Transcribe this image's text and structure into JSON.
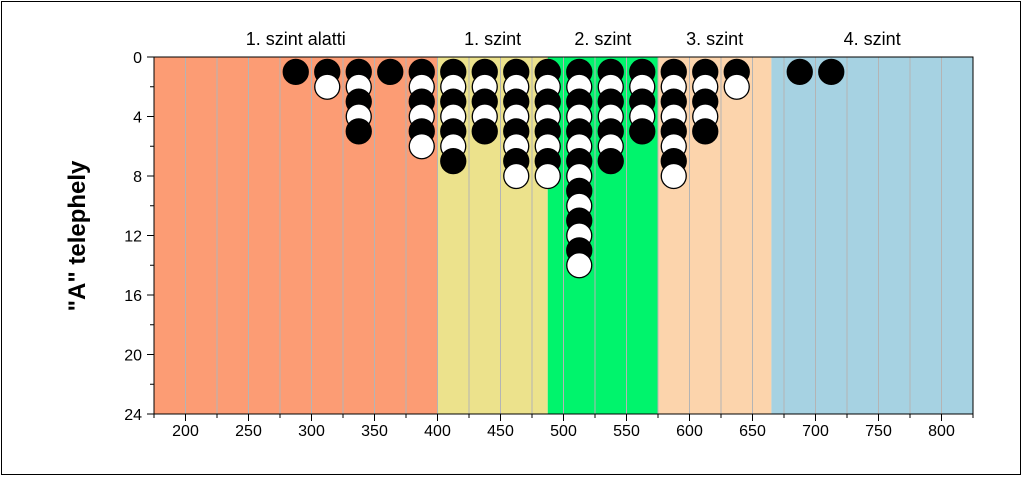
{
  "chart_data": {
    "type": "scatter",
    "title": "",
    "xlabel": "",
    "ylabel": "\"A\" telephely",
    "xlim": [
      175,
      825
    ],
    "ylim": [
      0,
      24
    ],
    "y_inverted": true,
    "x_ticks": [
      200,
      250,
      300,
      350,
      400,
      450,
      500,
      550,
      600,
      650,
      700,
      750,
      800
    ],
    "y_ticks": [
      0,
      4,
      8,
      12,
      16,
      20,
      24
    ],
    "grid": "vertical",
    "zones": [
      {
        "label": "1. szint alatti",
        "x_start": 175,
        "x_end": 400,
        "color": "#fc9c74"
      },
      {
        "label": "1. szint",
        "x_start": 400,
        "x_end": 487.5,
        "color": "#ece28c"
      },
      {
        "label": "2. szint",
        "x_start": 487.5,
        "x_end": 575,
        "color": "#00f46c"
      },
      {
        "label": "3. szint",
        "x_start": 575,
        "x_end": 665,
        "color": "#fcd4ac"
      },
      {
        "label": "4. szint",
        "x_start": 665,
        "x_end": 825,
        "color": "#a6d2e2"
      }
    ],
    "marker_colors": {
      "filled": "#000000",
      "open": "#ffffff"
    },
    "columns": [
      {
        "x": 287.5,
        "markers": [
          "filled"
        ]
      },
      {
        "x": 312.5,
        "markers": [
          "filled",
          "open"
        ]
      },
      {
        "x": 337.5,
        "markers": [
          "filled",
          "open",
          "filled",
          "open",
          "filled"
        ]
      },
      {
        "x": 362.5,
        "markers": [
          "filled"
        ]
      },
      {
        "x": 387.5,
        "markers": [
          "filled",
          "open",
          "filled",
          "open",
          "filled",
          "open"
        ]
      },
      {
        "x": 412.5,
        "markers": [
          "filled",
          "open",
          "filled",
          "open",
          "filled",
          "open",
          "filled"
        ]
      },
      {
        "x": 437.5,
        "markers": [
          "filled",
          "open",
          "filled",
          "open",
          "filled"
        ]
      },
      {
        "x": 462.5,
        "markers": [
          "filled",
          "open",
          "filled",
          "open",
          "filled",
          "open",
          "filled",
          "open"
        ]
      },
      {
        "x": 487.5,
        "markers": [
          "filled",
          "open",
          "filled",
          "open",
          "filled",
          "open",
          "filled",
          "open"
        ]
      },
      {
        "x": 512.5,
        "markers": [
          "filled",
          "open",
          "filled",
          "open",
          "filled",
          "open",
          "filled",
          "open",
          "filled",
          "open",
          "filled",
          "open",
          "filled",
          "open"
        ]
      },
      {
        "x": 537.5,
        "markers": [
          "filled",
          "open",
          "filled",
          "open",
          "filled",
          "open",
          "filled"
        ]
      },
      {
        "x": 562.5,
        "markers": [
          "filled",
          "open",
          "filled",
          "open",
          "filled"
        ]
      },
      {
        "x": 587.5,
        "markers": [
          "filled",
          "open",
          "filled",
          "open",
          "filled",
          "open",
          "filled",
          "open"
        ]
      },
      {
        "x": 612.5,
        "markers": [
          "filled",
          "open",
          "filled",
          "open",
          "filled"
        ]
      },
      {
        "x": 637.5,
        "markers": [
          "filled",
          "open"
        ]
      },
      {
        "x": 687.5,
        "markers": [
          "filled"
        ]
      },
      {
        "x": 712.5,
        "markers": [
          "filled"
        ]
      }
    ]
  }
}
